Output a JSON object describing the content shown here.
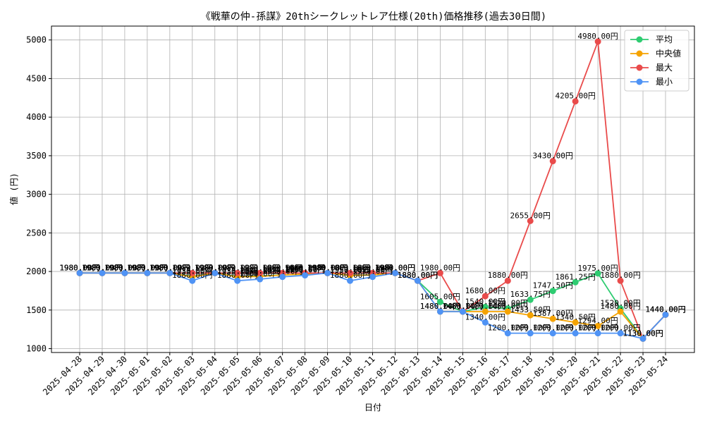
{
  "chart_data": {
    "type": "line",
    "title": "《戦華の仲-孫謀》20thシークレットレア仕様(20th)価格推移(過去30日間)",
    "xlabel": "日付",
    "ylabel": "値 (円)",
    "ylim": [
      950,
      5180
    ],
    "yticks": [
      1000,
      1500,
      2000,
      2500,
      3000,
      3500,
      4000,
      4500,
      5000
    ],
    "grid": true,
    "legend_position": "top-right",
    "label_suffix": "円",
    "x": [
      "2025-04-28",
      "2025-04-29",
      "2025-04-30",
      "2025-05-01",
      "2025-05-02",
      "2025-05-03",
      "2025-05-04",
      "2025-05-05",
      "2025-05-06",
      "2025-05-07",
      "2025-05-08",
      "2025-05-09",
      "2025-05-10",
      "2025-05-11",
      "2025-05-12",
      "2025-05-13",
      "2025-05-14",
      "2025-05-15",
      "2025-05-16",
      "2025-05-17",
      "2025-05-18",
      "2025-05-19",
      "2025-05-20",
      "2025-05-21",
      "2025-05-22",
      "2025-05-23",
      "2025-05-24"
    ],
    "series": [
      {
        "name": "平均",
        "color": "#2ecc71",
        "values": [
          1980,
          1980,
          1980,
          1980,
          1980,
          1935,
          1980,
          1935,
          1940,
          1955,
          1965,
          1980,
          1950,
          1955,
          1980,
          1880,
          1605,
          1480,
          1540,
          1520,
          1633.75,
          1747.5,
          1861.25,
          1975,
          1520,
          1130,
          1440
        ]
      },
      {
        "name": "中央値",
        "color": "#f5a300",
        "values": [
          1980,
          1980,
          1980,
          1980,
          1980,
          1930,
          1980,
          1930,
          1935,
          1955,
          1965,
          1980,
          1950,
          1955,
          1980,
          1880,
          1480,
          1480,
          1480,
          1480,
          1433.5,
          1387,
          1340.5,
          1294,
          1480,
          1130,
          1440
        ]
      },
      {
        "name": "最大",
        "color": "#e94b4b",
        "values": [
          1980,
          1980,
          1980,
          1980,
          1980,
          1980,
          1980,
          1980,
          1980,
          1980,
          1980,
          1980,
          1980,
          1980,
          1980,
          1880,
          1980,
          1480,
          1680,
          1880,
          2655,
          3430,
          4205,
          4980,
          1880,
          1130,
          1440
        ]
      },
      {
        "name": "最小",
        "color": "#4f93f5",
        "values": [
          1980,
          1980,
          1980,
          1980,
          1980,
          1880,
          1980,
          1880,
          1900,
          1930,
          1950,
          1980,
          1880,
          1930,
          1980,
          1880,
          1480,
          1480,
          1340,
          1200,
          1200,
          1200,
          1200,
          1200,
          1200,
          1130,
          1440
        ]
      }
    ]
  }
}
